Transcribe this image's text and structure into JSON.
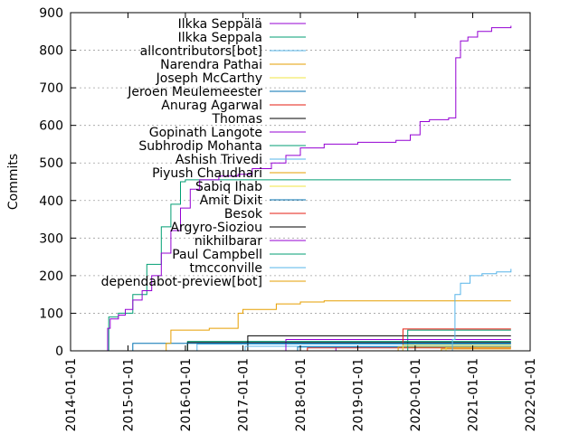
{
  "chart_data": {
    "type": "line",
    "title": "",
    "xlabel": "",
    "ylabel": "Commits",
    "xlim": [
      "2014-01-01",
      "2022-01-01"
    ],
    "ylim": [
      0,
      900
    ],
    "x_ticks": [
      "2014-01-01",
      "2015-01-01",
      "2016-01-01",
      "2017-01-01",
      "2018-01-01",
      "2019-01-01",
      "2020-01-01",
      "2021-01-01",
      "2022-01-01"
    ],
    "y_ticks": [
      0,
      100,
      200,
      300,
      400,
      500,
      600,
      700,
      800,
      900
    ],
    "grid": true,
    "legend": "top-right",
    "series": [
      {
        "name": "Ilkka Seppälä",
        "color": "#9400d3",
        "points": [
          [
            "2014-08-10",
            0
          ],
          [
            "2014-08-25",
            60
          ],
          [
            "2014-09-10",
            85
          ],
          [
            "2014-11-01",
            95
          ],
          [
            "2014-12-15",
            110
          ],
          [
            "2015-02-01",
            135
          ],
          [
            "2015-04-01",
            160
          ],
          [
            "2015-06-01",
            200
          ],
          [
            "2015-08-01",
            260
          ],
          [
            "2015-10-01",
            320
          ],
          [
            "2015-12-01",
            380
          ],
          [
            "2016-02-01",
            430
          ],
          [
            "2016-04-01",
            455
          ],
          [
            "2016-08-01",
            465
          ],
          [
            "2016-12-01",
            470
          ],
          [
            "2017-03-01",
            485
          ],
          [
            "2017-07-01",
            500
          ],
          [
            "2017-10-01",
            520
          ],
          [
            "2018-01-01",
            540
          ],
          [
            "2018-06-01",
            550
          ],
          [
            "2019-01-01",
            555
          ],
          [
            "2019-09-01",
            560
          ],
          [
            "2019-12-01",
            575
          ],
          [
            "2020-02-01",
            610
          ],
          [
            "2020-04-01",
            615
          ],
          [
            "2020-08-01",
            620
          ],
          [
            "2020-09-15",
            780
          ],
          [
            "2020-10-15",
            825
          ],
          [
            "2020-12-01",
            835
          ],
          [
            "2021-02-01",
            850
          ],
          [
            "2021-05-01",
            860
          ],
          [
            "2021-09-01",
            865
          ]
        ]
      },
      {
        "name": "Ilkka Seppala",
        "color": "#009e73",
        "points": [
          [
            "2014-08-20",
            0
          ],
          [
            "2014-09-01",
            90
          ],
          [
            "2014-11-01",
            100
          ],
          [
            "2015-02-01",
            150
          ],
          [
            "2015-05-01",
            230
          ],
          [
            "2015-08-01",
            330
          ],
          [
            "2015-10-01",
            390
          ],
          [
            "2015-12-01",
            450
          ],
          [
            "2016-01-01",
            455
          ],
          [
            "2021-09-01",
            455
          ]
        ]
      },
      {
        "name": "allcontributors[bot]",
        "color": "#56b4e9",
        "points": [
          [
            "2020-08-20",
            0
          ],
          [
            "2020-08-25",
            30
          ],
          [
            "2020-09-10",
            150
          ],
          [
            "2020-10-15",
            180
          ],
          [
            "2020-12-15",
            200
          ],
          [
            "2021-03-01",
            205
          ],
          [
            "2021-06-01",
            210
          ],
          [
            "2021-09-01",
            218
          ]
        ]
      },
      {
        "name": "Narendra Pathai",
        "color": "#e69f00",
        "points": [
          [
            "2015-08-01",
            0
          ],
          [
            "2015-09-01",
            20
          ],
          [
            "2015-10-01",
            55
          ],
          [
            "2016-06-01",
            60
          ],
          [
            "2016-12-01",
            100
          ],
          [
            "2017-01-01",
            110
          ],
          [
            "2017-08-01",
            125
          ],
          [
            "2018-01-01",
            130
          ],
          [
            "2018-06-01",
            133
          ],
          [
            "2021-09-01",
            133
          ]
        ]
      },
      {
        "name": "Joseph McCarthy",
        "color": "#f0e442",
        "points": [
          [
            "2019-10-01",
            0
          ],
          [
            "2019-10-15",
            15
          ],
          [
            "2021-09-01",
            15
          ]
        ]
      },
      {
        "name": "Jeroen Meulemeester",
        "color": "#0072b2",
        "points": [
          [
            "2015-01-01",
            0
          ],
          [
            "2015-02-01",
            20
          ],
          [
            "2021-09-01",
            20
          ]
        ]
      },
      {
        "name": "Anurag Agarwal",
        "color": "#e51e10",
        "points": [
          [
            "2019-10-01",
            0
          ],
          [
            "2019-10-15",
            58
          ],
          [
            "2021-09-01",
            58
          ]
        ]
      },
      {
        "name": "Thomas",
        "color": "#000000",
        "points": [
          [
            "2016-01-01",
            0
          ],
          [
            "2016-01-15",
            22
          ],
          [
            "2021-09-01",
            22
          ]
        ]
      },
      {
        "name": "Gopinath Langote",
        "color": "#9400d3",
        "points": [
          [
            "2017-09-01",
            0
          ],
          [
            "2017-10-01",
            30
          ],
          [
            "2021-09-01",
            30
          ]
        ]
      },
      {
        "name": "Subhrodip Mohanta",
        "color": "#009e73",
        "points": [
          [
            "2019-11-01",
            0
          ],
          [
            "2019-11-15",
            55
          ],
          [
            "2021-09-01",
            55
          ]
        ]
      },
      {
        "name": "Ashish Trivedi",
        "color": "#56b4e9",
        "points": [
          [
            "2017-01-01",
            0
          ],
          [
            "2017-01-15",
            12
          ],
          [
            "2021-09-01",
            12
          ]
        ]
      },
      {
        "name": "Piyush Chaudhari",
        "color": "#e69f00",
        "points": [
          [
            "2019-09-01",
            0
          ],
          [
            "2019-09-15",
            10
          ],
          [
            "2021-09-01",
            10
          ]
        ]
      },
      {
        "name": "Sabiq Ihab",
        "color": "#f0e442",
        "points": [
          [
            "2020-07-01",
            0
          ],
          [
            "2020-07-15",
            9
          ],
          [
            "2021-09-01",
            9
          ]
        ]
      },
      {
        "name": "Amit Dixit",
        "color": "#0072b2",
        "points": [
          [
            "2017-12-01",
            0
          ],
          [
            "2017-12-15",
            10
          ],
          [
            "2021-09-01",
            10
          ]
        ]
      },
      {
        "name": "Besok",
        "color": "#e51e10",
        "points": [
          [
            "2018-02-01",
            0
          ],
          [
            "2018-02-15",
            8
          ],
          [
            "2021-09-01",
            8
          ]
        ]
      },
      {
        "name": "Argyro-Sioziou",
        "color": "#000000",
        "points": [
          [
            "2017-01-01",
            0
          ],
          [
            "2017-02-01",
            40
          ],
          [
            "2021-09-01",
            40
          ]
        ]
      },
      {
        "name": "nikhilbarar",
        "color": "#9400d3",
        "points": [
          [
            "2018-08-01",
            0
          ],
          [
            "2018-08-15",
            12
          ],
          [
            "2021-09-01",
            12
          ]
        ]
      },
      {
        "name": "Paul Campbell",
        "color": "#009e73",
        "points": [
          [
            "2016-01-01",
            0
          ],
          [
            "2016-01-15",
            25
          ],
          [
            "2021-09-01",
            25
          ]
        ]
      },
      {
        "name": "tmcconville",
        "color": "#56b4e9",
        "points": [
          [
            "2016-03-01",
            0
          ],
          [
            "2016-03-15",
            18
          ],
          [
            "2021-09-01",
            18
          ]
        ]
      },
      {
        "name": "dependabot-preview[bot]",
        "color": "#e69f00",
        "points": [
          [
            "2020-06-01",
            0
          ],
          [
            "2020-06-15",
            5
          ],
          [
            "2021-09-01",
            5
          ]
        ]
      }
    ]
  }
}
